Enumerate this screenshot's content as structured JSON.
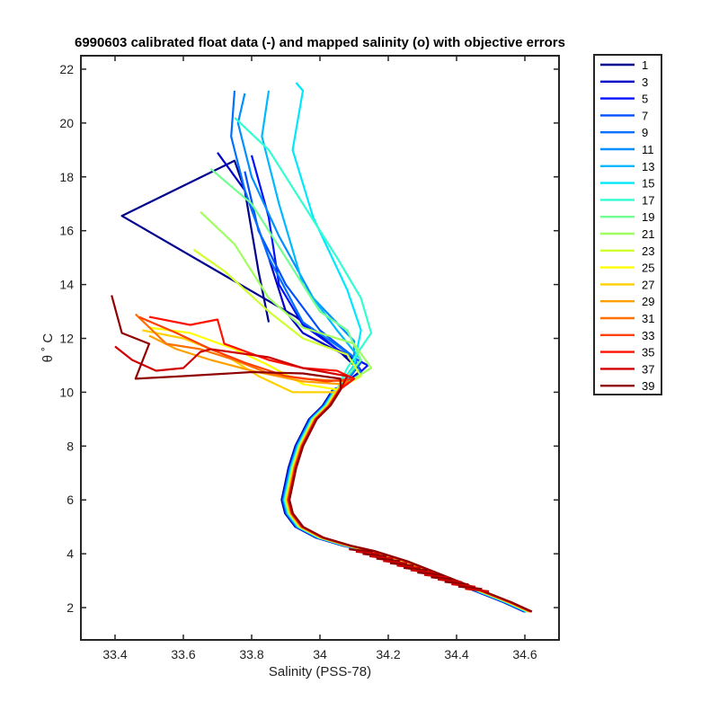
{
  "chart_data": {
    "type": "line",
    "title": "6990603 calibrated float data (-) and mapped salinity (o) with objective errors",
    "xlabel": "Salinity (PSS-78)",
    "ylabel": "θ ˚ C",
    "xlim": [
      33.3,
      34.7
    ],
    "ylim": [
      0.8,
      22.5
    ],
    "xticks": [
      33.4,
      33.6,
      33.8,
      34,
      34.2,
      34.4,
      34.6
    ],
    "xtick_labels": [
      "33.4",
      "33.6",
      "33.8",
      "34",
      "34.2",
      "34.4",
      "34.6"
    ],
    "yticks": [
      2,
      4,
      6,
      8,
      10,
      12,
      14,
      16,
      18,
      20,
      22
    ],
    "ytick_labels": [
      "2",
      "4",
      "6",
      "8",
      "10",
      "12",
      "14",
      "16",
      "18",
      "20",
      "22"
    ],
    "grid": false,
    "legend_position": "outside-right",
    "colors": [
      "#00008f",
      "#0000c6",
      "#0010ff",
      "#0050ff",
      "#0070ff",
      "#0090ff",
      "#00b8ff",
      "#00e8ff",
      "#30ffd0",
      "#70ff90",
      "#a0ff60",
      "#d0ff30",
      "#ffff00",
      "#ffd000",
      "#ffa000",
      "#ff7000",
      "#ff4000",
      "#ff1000",
      "#d00000",
      "#900000"
    ],
    "common_deep": [
      [
        34.05,
        10.1
      ],
      [
        34.02,
        9.5
      ],
      [
        33.98,
        9.0
      ],
      [
        33.94,
        8.0
      ],
      [
        33.92,
        7.2
      ],
      [
        33.91,
        6.6
      ],
      [
        33.9,
        6.0
      ],
      [
        33.91,
        5.5
      ],
      [
        33.94,
        5.0
      ],
      [
        34.0,
        4.6
      ],
      [
        34.08,
        4.3
      ],
      [
        34.15,
        4.1
      ],
      [
        34.25,
        3.7
      ],
      [
        34.35,
        3.2
      ],
      [
        34.45,
        2.7
      ],
      [
        34.55,
        2.2
      ],
      [
        34.61,
        1.85
      ]
    ],
    "series": [
      {
        "name": "1",
        "values": [
          [
            33.85,
            12.6
          ],
          [
            33.82,
            14.5
          ],
          [
            33.8,
            16.0
          ],
          [
            33.78,
            17.5
          ],
          [
            33.75,
            18.6
          ],
          [
            33.42,
            16.55
          ],
          [
            33.93,
            12.8
          ],
          [
            34.05,
            11.6
          ],
          [
            34.1,
            11.0
          ],
          [
            34.05,
            10.1
          ]
        ]
      },
      {
        "name": "3",
        "values": [
          [
            33.7,
            18.9
          ],
          [
            33.78,
            17.5
          ],
          [
            33.85,
            15.0
          ],
          [
            33.9,
            13.0
          ],
          [
            33.95,
            12.2
          ],
          [
            34.1,
            11.2
          ],
          [
            34.12,
            10.8
          ],
          [
            34.06,
            10.2
          ]
        ]
      },
      {
        "name": "5",
        "values": [
          [
            33.8,
            18.8
          ],
          [
            33.85,
            16.5
          ],
          [
            33.88,
            14.0
          ],
          [
            33.95,
            12.5
          ],
          [
            34.05,
            11.6
          ],
          [
            34.14,
            11.0
          ],
          [
            34.08,
            10.3
          ]
        ]
      },
      {
        "name": "7",
        "values": [
          [
            33.78,
            18.2
          ],
          [
            33.82,
            16.0
          ],
          [
            33.9,
            14.0
          ],
          [
            34.0,
            12.3
          ],
          [
            34.12,
            11.1
          ],
          [
            34.06,
            10.1
          ]
        ]
      },
      {
        "name": "9",
        "values": [
          [
            33.75,
            21.2
          ],
          [
            33.74,
            19.5
          ],
          [
            33.78,
            17.5
          ],
          [
            33.85,
            15.0
          ],
          [
            33.95,
            12.6
          ],
          [
            34.1,
            11.3
          ],
          [
            34.12,
            10.7
          ],
          [
            34.05,
            10.1
          ]
        ]
      },
      {
        "name": "11",
        "values": [
          [
            33.78,
            21.1
          ],
          [
            33.76,
            20.0
          ],
          [
            33.8,
            18.0
          ],
          [
            33.88,
            15.8
          ],
          [
            33.98,
            13.5
          ],
          [
            34.1,
            11.9
          ],
          [
            34.1,
            10.8
          ],
          [
            34.05,
            10.1
          ]
        ]
      },
      {
        "name": "13",
        "values": [
          [
            33.85,
            21.2
          ],
          [
            33.83,
            19.5
          ],
          [
            33.88,
            17.0
          ],
          [
            33.95,
            14.0
          ],
          [
            34.05,
            12.3
          ],
          [
            34.12,
            11.2
          ],
          [
            34.06,
            10.2
          ]
        ]
      },
      {
        "name": "15",
        "values": [
          [
            33.93,
            21.5
          ],
          [
            33.95,
            21.2
          ],
          [
            33.92,
            19.0
          ],
          [
            33.98,
            16.5
          ],
          [
            34.08,
            13.8
          ],
          [
            34.12,
            12.3
          ],
          [
            34.1,
            11.0
          ],
          [
            34.05,
            10.1
          ]
        ]
      },
      {
        "name": "17",
        "values": [
          [
            33.75,
            20.2
          ],
          [
            33.85,
            19.0
          ],
          [
            33.95,
            17.0
          ],
          [
            34.05,
            15.0
          ],
          [
            34.12,
            13.5
          ],
          [
            34.15,
            12.2
          ],
          [
            34.08,
            10.9
          ],
          [
            34.05,
            10.1
          ]
        ]
      },
      {
        "name": "19",
        "values": [
          [
            33.68,
            18.3
          ],
          [
            33.8,
            17.0
          ],
          [
            33.9,
            15.0
          ],
          [
            34.0,
            13.0
          ],
          [
            34.08,
            12.3
          ],
          [
            34.12,
            11.2
          ],
          [
            34.06,
            10.3
          ]
        ]
      },
      {
        "name": "21",
        "values": [
          [
            33.65,
            16.7
          ],
          [
            33.75,
            15.5
          ],
          [
            33.85,
            13.5
          ],
          [
            33.95,
            12.4
          ],
          [
            34.1,
            11.8
          ],
          [
            34.15,
            10.9
          ],
          [
            34.06,
            10.2
          ]
        ]
      },
      {
        "name": "23",
        "values": [
          [
            33.63,
            15.3
          ],
          [
            33.72,
            14.5
          ],
          [
            33.85,
            13.0
          ],
          [
            33.95,
            12.0
          ],
          [
            34.08,
            11.4
          ],
          [
            34.12,
            10.6
          ],
          [
            34.05,
            10.1
          ]
        ]
      },
      {
        "name": "25",
        "values": [
          [
            33.5,
            12.4
          ],
          [
            33.62,
            12.2
          ],
          [
            33.75,
            11.6
          ],
          [
            33.85,
            11.0
          ],
          [
            33.95,
            10.3
          ],
          [
            34.05,
            10.1
          ]
        ]
      },
      {
        "name": "27",
        "values": [
          [
            33.48,
            12.3
          ],
          [
            33.6,
            12.0
          ],
          [
            33.72,
            11.4
          ],
          [
            33.82,
            10.6
          ],
          [
            33.92,
            10.0
          ],
          [
            34.05,
            10.0
          ]
        ]
      },
      {
        "name": "29",
        "values": [
          [
            33.5,
            12.1
          ],
          [
            33.58,
            11.6
          ],
          [
            33.68,
            11.2
          ],
          [
            33.8,
            10.8
          ],
          [
            33.95,
            10.4
          ],
          [
            34.06,
            10.3
          ]
        ]
      },
      {
        "name": "31",
        "values": [
          [
            33.46,
            12.9
          ],
          [
            33.55,
            11.8
          ],
          [
            33.65,
            11.6
          ],
          [
            33.75,
            11.2
          ],
          [
            33.85,
            10.7
          ],
          [
            33.95,
            10.5
          ],
          [
            34.08,
            10.4
          ]
        ]
      },
      {
        "name": "33",
        "values": [
          [
            33.47,
            12.8
          ],
          [
            33.58,
            12.2
          ],
          [
            33.68,
            11.6
          ],
          [
            33.78,
            11.1
          ],
          [
            33.9,
            10.6
          ],
          [
            34.02,
            10.4
          ],
          [
            34.1,
            10.5
          ]
        ]
      },
      {
        "name": "35",
        "values": [
          [
            33.5,
            12.8
          ],
          [
            33.62,
            12.5
          ],
          [
            33.7,
            12.7
          ],
          [
            33.72,
            11.8
          ],
          [
            33.85,
            11.2
          ],
          [
            33.95,
            10.9
          ],
          [
            34.05,
            10.8
          ],
          [
            34.1,
            10.5
          ]
        ]
      },
      {
        "name": "37",
        "values": [
          [
            33.4,
            11.7
          ],
          [
            33.45,
            11.2
          ],
          [
            33.52,
            10.8
          ],
          [
            33.6,
            10.9
          ],
          [
            33.65,
            11.5
          ],
          [
            33.68,
            11.6
          ],
          [
            33.85,
            11.3
          ],
          [
            33.95,
            10.9
          ],
          [
            34.08,
            10.6
          ]
        ]
      },
      {
        "name": "39",
        "values": [
          [
            33.39,
            13.6
          ],
          [
            33.42,
            12.2
          ],
          [
            33.5,
            11.8
          ],
          [
            33.46,
            10.5
          ],
          [
            33.6,
            10.6
          ],
          [
            33.8,
            10.75
          ],
          [
            33.95,
            10.7
          ],
          [
            34.06,
            10.5
          ]
        ]
      }
    ]
  }
}
